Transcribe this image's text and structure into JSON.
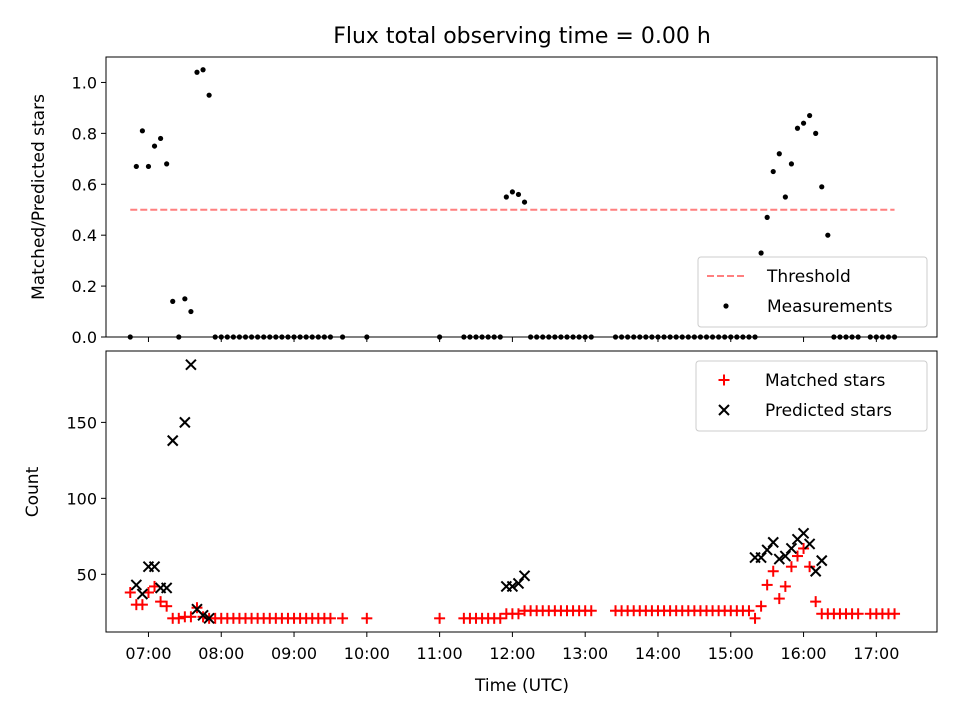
{
  "chart_data": {
    "title": "Flux total observing time = 0.00 h",
    "xlabel": "Time (UTC)",
    "x_ticks": [
      "07:00",
      "08:00",
      "09:00",
      "10:00",
      "11:00",
      "12:00",
      "13:00",
      "14:00",
      "15:00",
      "16:00",
      "17:00"
    ],
    "x_range": [
      "06:25",
      "17:50"
    ],
    "panels": [
      {
        "type": "scatter",
        "ylabel": "Matched/Predicted stars",
        "ylim": [
          0,
          1.1
        ],
        "y_ticks": [
          0.0,
          0.2,
          0.4,
          0.6,
          0.8,
          1.0
        ],
        "y_tick_labels": [
          "0.0",
          "0.2",
          "0.4",
          "0.6",
          "0.8",
          "1.0"
        ],
        "legend": "lower-right",
        "series": [
          {
            "name": "Threshold",
            "style": "dashed-line",
            "color": "#ff7f7f",
            "x": [
              "06:45",
              "17:15"
            ],
            "y": [
              0.5,
              0.5
            ]
          },
          {
            "name": "Measurements",
            "style": "dot",
            "color": "#000000",
            "x": [
              "06:45",
              "06:50",
              "06:55",
              "07:00",
              "07:05",
              "07:10",
              "07:15",
              "07:20",
              "07:25",
              "07:30",
              "07:35",
              "07:40",
              "07:45",
              "07:50",
              "07:55",
              "08:00",
              "08:05",
              "08:10",
              "08:15",
              "08:20",
              "08:25",
              "08:30",
              "08:35",
              "08:40",
              "08:45",
              "08:50",
              "08:55",
              "09:00",
              "09:05",
              "09:10",
              "09:15",
              "09:20",
              "09:25",
              "09:30",
              "09:40",
              "10:00",
              "11:00",
              "11:20",
              "11:25",
              "11:30",
              "11:35",
              "11:40",
              "11:45",
              "11:50",
              "11:55",
              "12:00",
              "12:05",
              "12:10",
              "12:15",
              "12:20",
              "12:25",
              "12:30",
              "12:35",
              "12:40",
              "12:45",
              "12:50",
              "12:55",
              "13:00",
              "13:05",
              "13:25",
              "13:30",
              "13:35",
              "13:40",
              "13:45",
              "13:50",
              "13:55",
              "14:00",
              "14:05",
              "14:10",
              "14:15",
              "14:20",
              "14:25",
              "14:30",
              "14:35",
              "14:40",
              "14:45",
              "14:50",
              "14:55",
              "15:00",
              "15:05",
              "15:10",
              "15:15",
              "15:20",
              "15:25",
              "15:30",
              "15:35",
              "15:40",
              "15:45",
              "15:50",
              "15:55",
              "16:00",
              "16:05",
              "16:10",
              "16:15",
              "16:20",
              "16:25",
              "16:30",
              "16:35",
              "16:40",
              "16:45",
              "16:55",
              "17:00",
              "17:05",
              "17:10",
              "17:15"
            ],
            "y": [
              0.0,
              0.67,
              0.81,
              0.67,
              0.75,
              0.78,
              0.68,
              0.14,
              0.0,
              0.15,
              0.1,
              1.04,
              1.05,
              0.95,
              0.0,
              0.0,
              0.0,
              0.0,
              0.0,
              0.0,
              0.0,
              0.0,
              0.0,
              0.0,
              0.0,
              0.0,
              0.0,
              0.0,
              0.0,
              0.0,
              0.0,
              0.0,
              0.0,
              0.0,
              0.0,
              0.0,
              0.0,
              0.0,
              0.0,
              0.0,
              0.0,
              0.0,
              0.0,
              0.0,
              0.55,
              0.57,
              0.56,
              0.53,
              0.0,
              0.0,
              0.0,
              0.0,
              0.0,
              0.0,
              0.0,
              0.0,
              0.0,
              0.0,
              0.0,
              0.0,
              0.0,
              0.0,
              0.0,
              0.0,
              0.0,
              0.0,
              0.0,
              0.0,
              0.0,
              0.0,
              0.0,
              0.0,
              0.0,
              0.0,
              0.0,
              0.0,
              0.0,
              0.0,
              0.0,
              0.0,
              0.0,
              0.0,
              0.0,
              0.33,
              0.47,
              0.65,
              0.72,
              0.55,
              0.68,
              0.82,
              0.84,
              0.87,
              0.8,
              0.59,
              0.4,
              0.0,
              0.0,
              0.0,
              0.0,
              0.0,
              0.0,
              0.0,
              0.0,
              0.0,
              0.0
            ]
          }
        ]
      },
      {
        "type": "scatter",
        "ylabel": "Count",
        "ylim": [
          12,
          197
        ],
        "y_ticks": [
          50,
          100,
          150
        ],
        "y_tick_labels": [
          "50",
          "100",
          "150"
        ],
        "legend": "top-right",
        "series": [
          {
            "name": "Matched stars",
            "marker": "plus",
            "color": "#ff0000",
            "x": [
              "06:45",
              "06:50",
              "06:55",
              "07:00",
              "07:05",
              "07:10",
              "07:15",
              "07:20",
              "07:25",
              "07:30",
              "07:35",
              "07:40",
              "07:45",
              "07:50",
              "07:55",
              "08:00",
              "08:05",
              "08:10",
              "08:15",
              "08:20",
              "08:25",
              "08:30",
              "08:35",
              "08:40",
              "08:45",
              "08:50",
              "08:55",
              "09:00",
              "09:05",
              "09:10",
              "09:15",
              "09:20",
              "09:25",
              "09:30",
              "09:40",
              "10:00",
              "11:00",
              "11:20",
              "11:25",
              "11:30",
              "11:35",
              "11:40",
              "11:45",
              "11:50",
              "11:55",
              "12:00",
              "12:05",
              "12:10",
              "12:15",
              "12:20",
              "12:25",
              "12:30",
              "12:35",
              "12:40",
              "12:45",
              "12:50",
              "12:55",
              "13:00",
              "13:05",
              "13:25",
              "13:30",
              "13:35",
              "13:40",
              "13:45",
              "13:50",
              "13:55",
              "14:00",
              "14:05",
              "14:10",
              "14:15",
              "14:20",
              "14:25",
              "14:30",
              "14:35",
              "14:40",
              "14:45",
              "14:50",
              "14:55",
              "15:00",
              "15:05",
              "15:10",
              "15:15",
              "15:20",
              "15:25",
              "15:30",
              "15:35",
              "15:40",
              "15:45",
              "15:50",
              "15:55",
              "16:00",
              "16:05",
              "16:10",
              "16:15",
              "16:20",
              "16:25",
              "16:30",
              "16:35",
              "16:40",
              "16:45",
              "16:55",
              "17:00",
              "17:05",
              "17:10",
              "17:15"
            ],
            "y": [
              38,
              30,
              30,
              38,
              42,
              32,
              29,
              21,
              21,
              22,
              22,
              28,
              22,
              21,
              21,
              21,
              21,
              21,
              21,
              21,
              21,
              21,
              21,
              21,
              21,
              21,
              21,
              21,
              21,
              21,
              21,
              21,
              21,
              21,
              21,
              21,
              21,
              21,
              21,
              21,
              21,
              21,
              21,
              21,
              24,
              24,
              24,
              26,
              26,
              26,
              26,
              26,
              26,
              26,
              26,
              26,
              26,
              26,
              26,
              26,
              26,
              26,
              26,
              26,
              26,
              26,
              26,
              26,
              26,
              26,
              26,
              26,
              26,
              26,
              26,
              26,
              26,
              26,
              26,
              26,
              26,
              26,
              21,
              29,
              43,
              52,
              34,
              42,
              55,
              62,
              67,
              55,
              32,
              24,
              24,
              24,
              24,
              24,
              24,
              24,
              24,
              24,
              24,
              24,
              24
            ]
          },
          {
            "name": "Predicted stars",
            "marker": "x",
            "color": "#000000",
            "x": [
              "06:50",
              "06:55",
              "07:00",
              "07:05",
              "07:10",
              "07:15",
              "07:20",
              "07:30",
              "07:35",
              "07:40",
              "07:45",
              "07:50",
              "11:55",
              "12:00",
              "12:05",
              "12:10",
              "15:20",
              "15:25",
              "15:30",
              "15:35",
              "15:40",
              "15:45",
              "15:50",
              "15:55",
              "16:00",
              "16:05",
              "16:10",
              "16:15"
            ],
            "y": [
              43,
              37,
              55,
              55,
              41,
              41,
              138,
              150,
              188,
              27,
              23,
              21,
              42,
              42,
              44,
              49,
              61,
              61,
              66,
              71,
              60,
              62,
              67,
              73,
              77,
              70,
              52,
              59
            ]
          }
        ]
      }
    ]
  }
}
